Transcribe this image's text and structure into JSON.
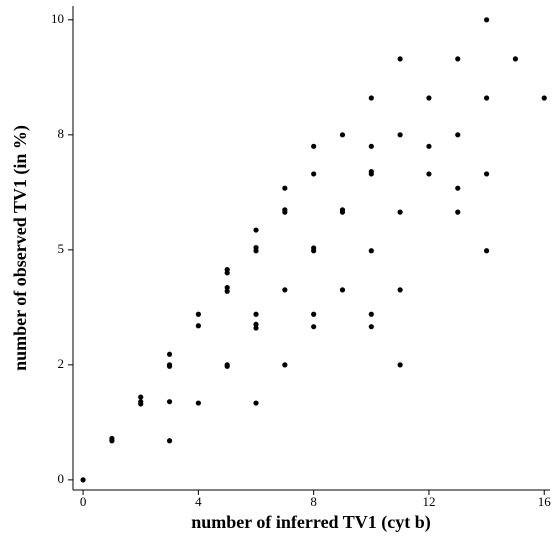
{
  "chart_data": {
    "type": "scatter",
    "xlabel": "number of inferred TV1 (cyt b)",
    "ylabel": "number of observed TV1 (in %)",
    "color": "#000000",
    "x": [
      0,
      1,
      1,
      2,
      2,
      2,
      3,
      3,
      3,
      3,
      3,
      4,
      4,
      4,
      5,
      5,
      5,
      5,
      5,
      5,
      6,
      6,
      6,
      6,
      6,
      6,
      6,
      7,
      7,
      7,
      7,
      7,
      8,
      8,
      8,
      8,
      8,
      8,
      9,
      9,
      9,
      9,
      10,
      10,
      10,
      10,
      10,
      10,
      10,
      11,
      11,
      11,
      11,
      11,
      12,
      12,
      12,
      13,
      13,
      13,
      13,
      14,
      14,
      14,
      14,
      15,
      16
    ],
    "y": [
      0,
      0.9,
      0.85,
      1.8,
      1.7,
      1.65,
      2.73,
      2.5,
      2.47,
      1.7,
      0.85,
      3.6,
      3.35,
      1.67,
      4.57,
      4.5,
      4.18,
      4.1,
      2.5,
      2.47,
      5.43,
      5.05,
      4.98,
      3.6,
      3.38,
      3.3,
      1.67,
      6.34,
      5.87,
      5.82,
      4.13,
      2.5,
      7.25,
      6.65,
      5.04,
      4.98,
      3.6,
      3.33,
      7.5,
      5.87,
      5.82,
      4.13,
      8.3,
      7.25,
      6.7,
      6.65,
      4.98,
      3.6,
      3.33,
      9.15,
      7.5,
      5.82,
      4.13,
      2.5,
      8.3,
      7.25,
      6.65,
      9.15,
      7.5,
      6.34,
      5.82,
      10,
      8.3,
      6.65,
      4.98,
      9.15,
      8.3
    ],
    "xlim": [
      -0.35,
      16.2
    ],
    "ylim": [
      -0.22,
      10.3
    ],
    "xticks": [
      0,
      4,
      8,
      12,
      16
    ],
    "yticks": [
      0,
      {
        "value": 2.5,
        "label": "2"
      },
      5,
      {
        "value": 7.5,
        "label": "8"
      },
      10
    ]
  }
}
